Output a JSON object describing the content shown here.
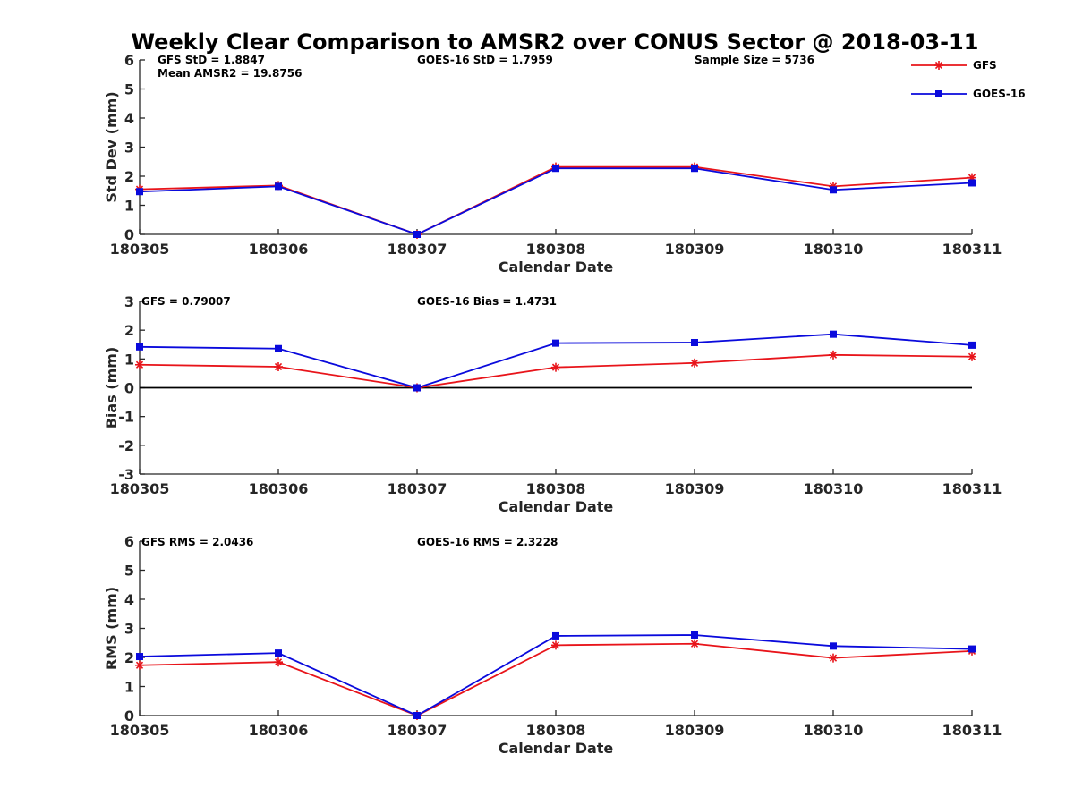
{
  "title": "Weekly Clear Comparison to AMSR2 over CONUS Sector @ 2018-03-11",
  "colors": {
    "gfs": "#e8141a",
    "goes": "#0a0adc",
    "zero_line": "#000000"
  },
  "legend": [
    {
      "label": "GFS",
      "color": "#e8141a",
      "marker": "asterisk"
    },
    {
      "label": "GOES-16",
      "color": "#0a0adc",
      "marker": "square"
    }
  ],
  "chart_data": [
    {
      "type": "line",
      "xlabel": "Calendar Date",
      "ylabel": "Std Dev (mm)",
      "categories": [
        "180305",
        "180306",
        "180307",
        "180308",
        "180309",
        "180310",
        "180311"
      ],
      "ylim": [
        0,
        6
      ],
      "yticks": [
        "0",
        "1",
        "2",
        "3",
        "4",
        "5",
        "6"
      ],
      "zero_line": false,
      "annotations": [
        "GFS StD = 1.8847",
        "Mean AMSR2 = 19.8756",
        "GOES-16 StD = 1.7959",
        "Sample Size = 5736"
      ],
      "series": [
        {
          "name": "GFS",
          "values": [
            1.55,
            1.68,
            0.0,
            2.32,
            2.32,
            1.65,
            1.95
          ]
        },
        {
          "name": "GOES-16",
          "values": [
            1.47,
            1.65,
            0.0,
            2.27,
            2.27,
            1.53,
            1.77
          ]
        }
      ]
    },
    {
      "type": "line",
      "xlabel": "Calendar Date",
      "ylabel": "Bias (mm)",
      "categories": [
        "180305",
        "180306",
        "180307",
        "180308",
        "180309",
        "180310",
        "180311"
      ],
      "ylim": [
        -3,
        3
      ],
      "yticks": [
        "-3",
        "-2",
        "-1",
        "0",
        "1",
        "2",
        "3"
      ],
      "zero_line": true,
      "annotations": [
        "GFS = 0.79007",
        "GOES-16 Bias  = 1.4731"
      ],
      "series": [
        {
          "name": "GFS",
          "values": [
            0.8,
            0.73,
            0.0,
            0.71,
            0.86,
            1.14,
            1.08
          ]
        },
        {
          "name": "GOES-16",
          "values": [
            1.42,
            1.36,
            0.0,
            1.55,
            1.57,
            1.86,
            1.48
          ]
        }
      ]
    },
    {
      "type": "line",
      "xlabel": "Calendar Date",
      "ylabel": "RMS (mm)",
      "categories": [
        "180305",
        "180306",
        "180307",
        "180308",
        "180309",
        "180310",
        "180311"
      ],
      "ylim": [
        0,
        6
      ],
      "yticks": [
        "0",
        "1",
        "2",
        "3",
        "4",
        "5",
        "6"
      ],
      "zero_line": false,
      "annotations": [
        "GFS RMS = 2.0436",
        "GOES-16 RMS = 2.3228"
      ],
      "series": [
        {
          "name": "GFS",
          "values": [
            1.73,
            1.84,
            0.0,
            2.42,
            2.47,
            1.98,
            2.22
          ]
        },
        {
          "name": "GOES-16",
          "values": [
            2.03,
            2.15,
            0.0,
            2.74,
            2.77,
            2.39,
            2.29
          ]
        }
      ]
    }
  ]
}
